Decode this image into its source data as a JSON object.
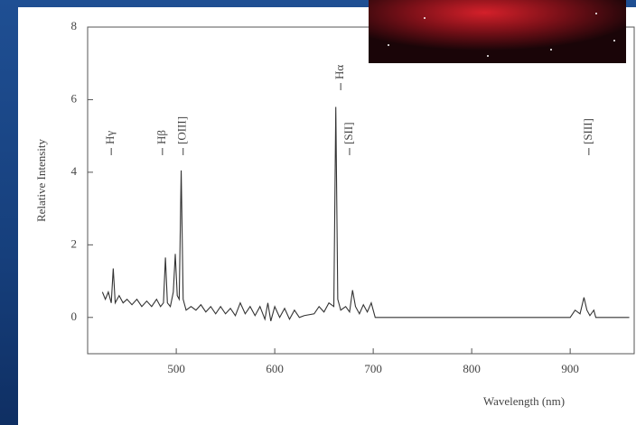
{
  "chart_data": {
    "type": "line",
    "x_label": "Wavelength (nm)",
    "y_label": "Relative Intensity",
    "xlim": [
      410,
      965
    ],
    "ylim": [
      -1,
      8
    ],
    "xticks": [
      500,
      600,
      700,
      800,
      900
    ],
    "yticks": [
      0,
      2,
      4,
      6,
      8
    ],
    "color": "#333333",
    "annotations": [
      {
        "text": "Hγ",
        "x": 434
      },
      {
        "text": "Hβ",
        "x": 486
      },
      {
        "text": "[OIII]",
        "x": 507
      },
      {
        "text": "Hα",
        "x": 667
      },
      {
        "text": "[SII]",
        "x": 676
      },
      {
        "text": "[SIII]",
        "x": 919
      }
    ],
    "x": [
      425,
      428,
      431,
      434,
      436,
      438,
      442,
      446,
      450,
      455,
      460,
      465,
      470,
      475,
      480,
      484,
      487,
      489,
      491,
      494,
      497,
      499,
      501,
      503,
      505,
      507,
      510,
      515,
      520,
      525,
      530,
      535,
      540,
      545,
      550,
      555,
      560,
      565,
      570,
      575,
      580,
      585,
      590,
      593,
      596,
      600,
      605,
      610,
      615,
      620,
      625,
      630,
      640,
      645,
      650,
      655,
      660,
      662,
      664,
      667,
      672,
      676,
      679,
      682,
      686,
      690,
      694,
      698,
      702,
      750,
      800,
      850,
      900,
      905,
      910,
      914,
      917,
      920,
      924,
      926,
      940,
      960
    ],
    "values": [
      0.7,
      0.5,
      0.7,
      0.4,
      1.35,
      0.4,
      0.6,
      0.4,
      0.5,
      0.35,
      0.5,
      0.3,
      0.45,
      0.3,
      0.5,
      0.3,
      0.4,
      1.65,
      0.4,
      0.3,
      0.7,
      1.75,
      0.6,
      0.5,
      4.05,
      0.5,
      0.2,
      0.3,
      0.2,
      0.35,
      0.15,
      0.3,
      0.1,
      0.3,
      0.1,
      0.25,
      0.05,
      0.4,
      0.1,
      0.3,
      0.05,
      0.3,
      -0.05,
      0.4,
      -0.1,
      0.3,
      0,
      0.25,
      -0.05,
      0.2,
      0,
      0.05,
      0.1,
      0.3,
      0.15,
      0.4,
      0.3,
      5.8,
      0.5,
      0.2,
      0.3,
      0.15,
      0.75,
      0.3,
      0.1,
      0.35,
      0.15,
      0.4,
      0,
      0,
      0,
      0,
      0,
      0.2,
      0.1,
      0.55,
      0.2,
      0.05,
      0.2,
      0,
      0,
      0
    ]
  }
}
